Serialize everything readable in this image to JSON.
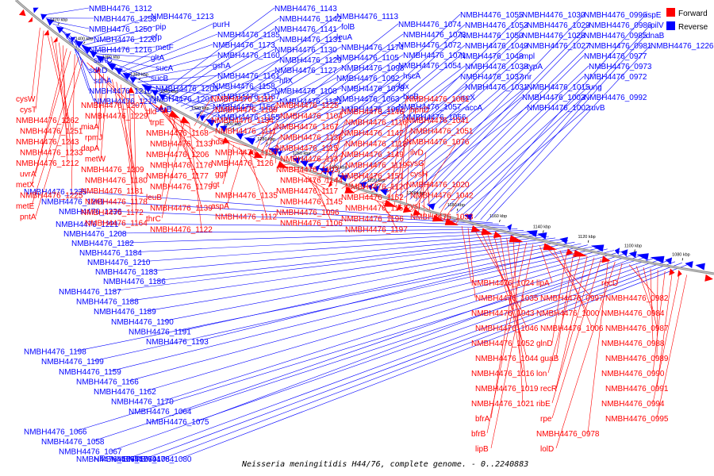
{
  "legend": {
    "items": [
      {
        "label": "Forward",
        "color": "#ff0000"
      },
      {
        "label": "Reverse",
        "color": "#0000ff"
      }
    ]
  },
  "caption": "Neisseria meningitidis H44/76, complete genome. - 0..2240883",
  "axis": {
    "ticks": [
      "1080 kbp",
      "1100 kbp",
      "1120 kbp",
      "1140 kbp",
      "1160 kbp",
      "1180 kbp",
      "1200 kbp",
      "1220 kbp",
      "1240 kbp",
      "1260 kbp",
      "1280 kbp",
      "1300 kbp",
      "1320 kbp",
      "1340 kbp",
      "1360 kbp",
      "1380 kbp",
      "1400 kbp",
      "1420 kbp"
    ]
  },
  "colors": {
    "forward": "#ff0000",
    "reverse": "#0000ff",
    "backbone": "#888888"
  },
  "reverse_labels": [
    "NMBH4476_1312",
    "NMBH4476_1258",
    "NMBH4476_1250",
    "NMBH4476_1220",
    "NMBH4476_1216",
    "sdhC",
    "sdhD",
    "sdhA",
    "NMBH4476_1215",
    "NMBH4476_1214",
    "NMBH4476_1213",
    "pip",
    "efp",
    "metF",
    "gltA",
    "sucA",
    "sucB",
    "NMBH4476_1205",
    "NMBH4476_1201",
    "serB",
    "purH",
    "NMBH4476_1185",
    "NMBH4476_1173",
    "NMBH4476_1160",
    "gshA",
    "NMBH4476_1161",
    "NMBH4476_1158",
    "NMBH4476_1157",
    "NMBH4476_1156",
    "NMBH4476_1155",
    "NMBH4476_1143",
    "NMBH4476_1142",
    "NMBH4476_1141",
    "NMBH4476_1131",
    "NMBH4476_1130",
    "NMBH4476_1129",
    "NMBH4476_1127",
    "hflX",
    "NMBH4476_1108",
    "NMBH4476_1121",
    "NMBH4476_1113",
    "folB",
    "leuA",
    "NMBH4476_1174",
    "NMBH4476_1105",
    "NMBH4476_1098",
    "NMBH4476_1092",
    "NMBH4476_1078",
    "NMBH4476_1063",
    "NMBH4476_1062",
    "NMBH4476_1074",
    "NMBH4476_1073",
    "NMBH4476_1072",
    "NMBH4476_1071",
    "NMBH4476_1054",
    "hscA",
    "fdx",
    "bioB",
    "NMBH4476_1057",
    "NMBH4476_1056",
    "NMBH4476_1055",
    "NMBH4476_1053",
    "NMBH4476_1050",
    "NMBH4476_1049",
    "NMBH4476_1048",
    "NMBH4476_1038",
    "NMBH4476_1037",
    "NMBH4476_1031",
    "iscX",
    "accA",
    "NMBH4476_1030",
    "NMBH4476_1029",
    "NMBH4476_1028",
    "NMBH4476_1027",
    "mpl",
    "typA",
    "rnr",
    "NMBH4476_1015",
    "NMBH4476_1003",
    "NMBH4476_1002",
    "NMBH4476_0996",
    "NMBH4476_0986",
    "NMBH4476_0985",
    "NMBH4476_0981",
    "NMBH4476_0977",
    "NMBH4476_0973",
    "NMBH4476_0972",
    "ung",
    "NMBH4476_0992",
    "ruvB",
    "ispE",
    "pilV",
    "dnaB",
    "NMBH4476_1226",
    "NMBH4476_1235",
    "NMBH4476_1241",
    "NMBH4476_1236",
    "NMBH4476_1221",
    "NMBH4476_1208",
    "NMBH4476_1182",
    "NMBH4476_1184",
    "NMBH4476_1210",
    "NMBH4476_1183",
    "NMBH4476_1186",
    "NMBH4476_1187",
    "NMBH4476_1188",
    "NMBH4476_1189",
    "NMBH4476_1190",
    "NMBH4476_1191",
    "NMBH4476_1193",
    "NMBH4476_1198",
    "NMBH4476_1199",
    "NMBH4476_1159",
    "NMBH4476_1166",
    "NMBH4476_1162",
    "NMBH4476_1170",
    "NMBH4476_1064",
    "NMBH4476_1075",
    "NMBH4476_1066",
    "NMBH4476_1058",
    "NMBH4476_1067",
    "NMBH4476_1077",
    "NMBH4476_1079",
    "NMBH4476_1084",
    "NMBH4476_1080"
  ],
  "forward_labels": [
    "cysW",
    "cysT",
    "NMBH4476_1262",
    "NMBH4476_1251",
    "NMBH4476_1243",
    "NMBH4476_1233",
    "NMBH4476_1212",
    "uvrA",
    "metX",
    "NMBH4476_1225",
    "metE",
    "pntA",
    "NMBH4476_1207",
    "NMBH4476_1229",
    "miaA",
    "rpmJ",
    "dapA",
    "metW",
    "NMBH4476_1209",
    "NMBH4476_1180",
    "NMBH4476_1181",
    "NMBH4476_1178",
    "NMBH4476_1172",
    "NMBH4476_1164",
    "dld",
    "trpE",
    "NMBH4476_1168",
    "NMBH4476_1133",
    "NMBH4476_1206",
    "NMBH4476_1176",
    "NMBH4476_1177",
    "NMBH4476_1179",
    "leuB",
    "NMBH4476_1139",
    "thrC",
    "NMBH4476_1122",
    "NMBH4476_1110",
    "NMBH4476_1169",
    "NMBH4476_1134",
    "NMBH4476_1111",
    "hda",
    "NMBH4476_1150",
    "NMBH4476_1126",
    "ggt",
    "lgt",
    "NMBH4476_1135",
    "aspA",
    "NMBH4476_1112",
    "NMBH4476_1125",
    "NMBH4476_1104",
    "NMBH4476_1167",
    "NMBH4476_1136",
    "NMBH4476_1115",
    "NMBH4476_1137",
    "NMBH4476_1103",
    "NMBH4476_1144",
    "NMBH4476_1117",
    "NMBH4476_1145",
    "NMBH4476_1096",
    "NMBH4476_1106",
    "NMBH4476_1146",
    "NMBH4476_1116",
    "NMBH4476_1147",
    "NMBH4476_1118",
    "NMBH4476_1149",
    "NMBH4476_1119",
    "NMBH4476_1151",
    "NMBH4476_1120",
    "NMBH4476_1152",
    "NMBH4476_1153",
    "NMBH4476_1196",
    "NMBH4476_1197",
    "NMBH4476_1061",
    "hpnD",
    "NMBH4476_1041",
    "NMBH4476_1051",
    "NMBH4476_1076",
    "ilvD",
    "cysG",
    "cysH",
    "NMBH4476_1020",
    "NMBH4476_1042",
    "cysI",
    "NMBH4476_1033",
    "NMBH4476_1024",
    "NMBH4476_1035",
    "NMBH4476_1043",
    "NMBH4476_1046",
    "NMBH4476_1052",
    "NMBH4476_1044",
    "NMBH4476_1016",
    "NMBH4476_1019",
    "NMBH4476_1021",
    "bfrA",
    "bfrB",
    "lipB",
    "lipA",
    "NMBH4476_0997",
    "NMBH4476_1000",
    "NMBH4476_1006",
    "glnD",
    "guaB",
    "lon",
    "recR",
    "ribE",
    "rpe",
    "NMBH4476_0978",
    "lolD",
    "recD",
    "NMBH4476_0982",
    "NMBH4476_0984",
    "NMBH4476_0987",
    "NMBH4476_0988",
    "NMBH4476_0989",
    "NMBH4476_0990",
    "NMBH4476_0991",
    "NMBH4476_0994",
    "NMBH4476_0995"
  ]
}
